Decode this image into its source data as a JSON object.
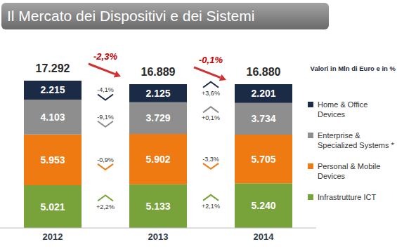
{
  "chart_data": {
    "type": "bar",
    "title": "Il Mercato dei Dispositivi e dei Sistemi",
    "subtitle": "Valori in Mln di Euro e in %",
    "stacked": true,
    "data_labels": true,
    "tick_labels": "x",
    "legend": "right",
    "categories": [
      "2012",
      "2013",
      "2014"
    ],
    "series": [
      {
        "name": "Home & Office Devices",
        "color": "#1b2b45",
        "values": [
          2215,
          2125,
          2201
        ],
        "value_labels": [
          "2.215",
          "2.125",
          "2.201"
        ],
        "changes": [
          -4.1,
          3.6
        ],
        "change_labels": [
          "-4,1%",
          "+3,6%"
        ]
      },
      {
        "name": "Enterprise & Specialized Systems *",
        "color": "#8e8e8e",
        "values": [
          4103,
          3729,
          3734
        ],
        "value_labels": [
          "4.103",
          "3.729",
          "3.734"
        ],
        "changes": [
          -9.1,
          0.1
        ],
        "change_labels": [
          "-9,1%",
          "+0,1%"
        ]
      },
      {
        "name": "Personal & Mobile Devices",
        "color": "#f07a12",
        "values": [
          5953,
          5902,
          5705
        ],
        "value_labels": [
          "5.953",
          "5.902",
          "5.705"
        ],
        "changes": [
          -0.9,
          -3.3
        ],
        "change_labels": [
          "-0,9%",
          "-3,3%"
        ]
      },
      {
        "name": "Infrastrutture ICT",
        "color": "#78a23a",
        "values": [
          5021,
          5133,
          5240
        ],
        "value_labels": [
          "5.021",
          "5.133",
          "5.240"
        ],
        "changes": [
          2.2,
          2.1
        ],
        "change_labels": [
          "+2,2%",
          "+2,1%"
        ]
      }
    ],
    "totals": [
      17292,
      16889,
      16880
    ],
    "total_labels": [
      "17.292",
      "16.889",
      "16.880"
    ],
    "total_changes": [
      -2.3,
      -0.1
    ],
    "total_change_labels": [
      "-2,3%",
      "-0,1%"
    ]
  }
}
